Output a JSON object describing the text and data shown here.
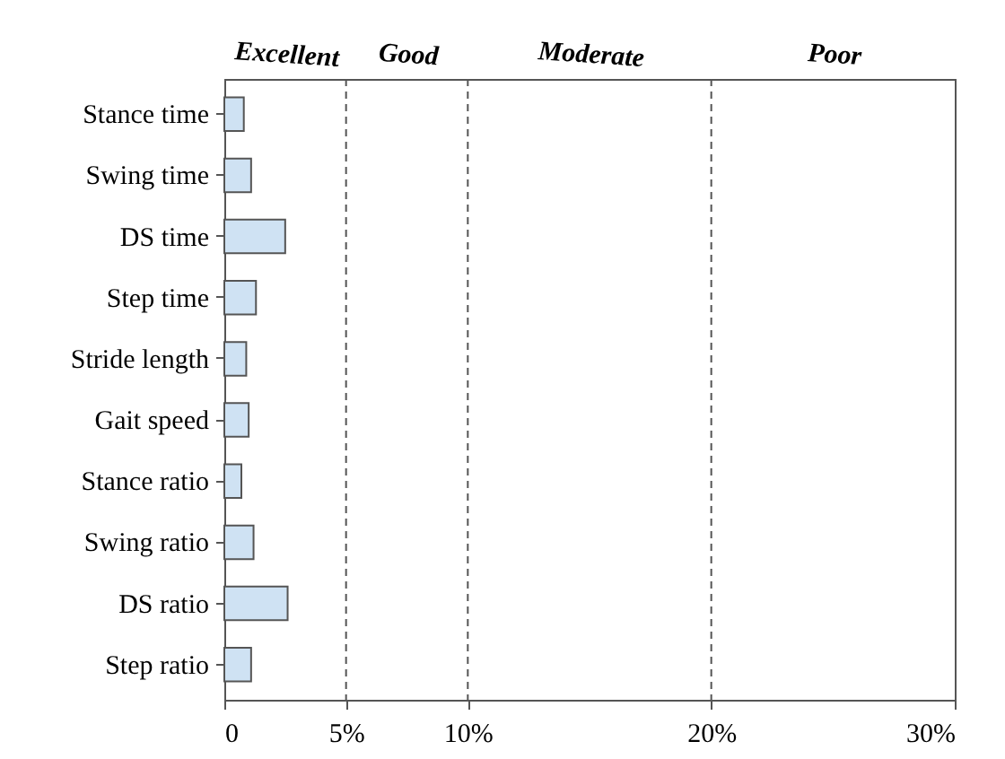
{
  "chart_data": {
    "type": "bar",
    "orientation": "horizontal",
    "categories": [
      "Stance time",
      "Swing time",
      "DS time",
      "Step time",
      "Stride length",
      "Gait speed",
      "Stance ratio",
      "Swing ratio",
      "DS ratio",
      "Step ratio"
    ],
    "values": [
      0.8,
      1.1,
      2.5,
      1.3,
      0.9,
      1.0,
      0.7,
      1.2,
      2.6,
      1.1
    ],
    "color": "#cfe2f3",
    "xlim": [
      0,
      30
    ],
    "xticks": [
      0,
      {
        "value": 5,
        "label": "5%"
      },
      {
        "value": 10,
        "label": "10%"
      },
      {
        "value": 20,
        "label": "20%"
      },
      {
        "value": 30,
        "label": "30%"
      }
    ],
    "grid": false,
    "ref_lines": [
      {
        "axis": "x",
        "value": 5,
        "line_style": "dashed",
        "color": "#555555"
      },
      {
        "axis": "x",
        "value": 10,
        "line_style": "dashed",
        "color": "#555555"
      },
      {
        "axis": "x",
        "value": 20,
        "line_style": "dashed",
        "color": "#555555"
      }
    ],
    "annotations": [
      "Excellent",
      "Good",
      "Moderate",
      "Poor"
    ]
  }
}
